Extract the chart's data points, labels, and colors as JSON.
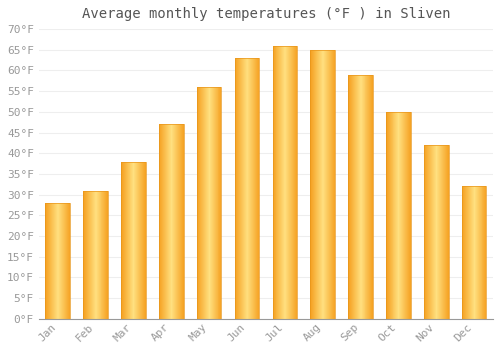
{
  "title": "Average monthly temperatures (°F ) in Sliven",
  "months": [
    "Jan",
    "Feb",
    "Mar",
    "Apr",
    "May",
    "Jun",
    "Jul",
    "Aug",
    "Sep",
    "Oct",
    "Nov",
    "Dec"
  ],
  "values": [
    28,
    31,
    38,
    47,
    56,
    63,
    66,
    65,
    59,
    50,
    42,
    32
  ],
  "bar_color_center": "#FFD966",
  "bar_color_edge": "#F5A623",
  "ylim": [
    0,
    70
  ],
  "yticks": [
    0,
    5,
    10,
    15,
    20,
    25,
    30,
    35,
    40,
    45,
    50,
    55,
    60,
    65,
    70
  ],
  "ytick_labels": [
    "0°F",
    "5°F",
    "10°F",
    "15°F",
    "20°F",
    "25°F",
    "30°F",
    "35°F",
    "40°F",
    "45°F",
    "50°F",
    "55°F",
    "60°F",
    "65°F",
    "70°F"
  ],
  "background_color": "#ffffff",
  "grid_color": "#eeeeee",
  "title_fontsize": 10,
  "tick_fontsize": 8,
  "bar_width": 0.65,
  "figsize": [
    5.0,
    3.5
  ],
  "dpi": 100
}
